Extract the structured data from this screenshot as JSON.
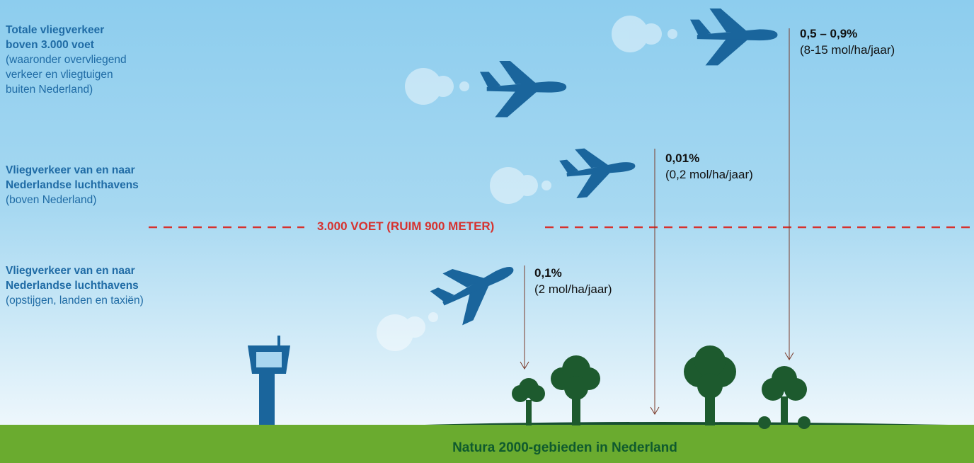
{
  "sections": [
    {
      "title": [
        "Totale vliegverkeer",
        "boven 3.000 voet"
      ],
      "description": [
        "(waaronder overvliegend",
        "verkeer en vliegtuigen",
        "buiten Nederland)"
      ]
    },
    {
      "title": [
        "Vliegverkeer van en naar",
        "Nederlandse luchthavens"
      ],
      "description": [
        "(boven Nederland)"
      ]
    },
    {
      "title": [
        "Vliegverkeer van en naar",
        "Nederlandse luchthavens"
      ],
      "description": [
        "(opstijgen, landen en taxiën)"
      ]
    }
  ],
  "altitude_line": "3.000 VOET (RUIM 900 METER)",
  "contributions": [
    {
      "percentage": "0,5 – 0,9%",
      "deposition": "(8-15 mol/ha/jaar)"
    },
    {
      "percentage": "0,01%",
      "deposition": "(0,2 mol/ha/jaar)"
    },
    {
      "percentage": "0,1%",
      "deposition": "(2 mol/ha/jaar)"
    }
  ],
  "ground_label": "Natura 2000-gebieden in Nederland"
}
